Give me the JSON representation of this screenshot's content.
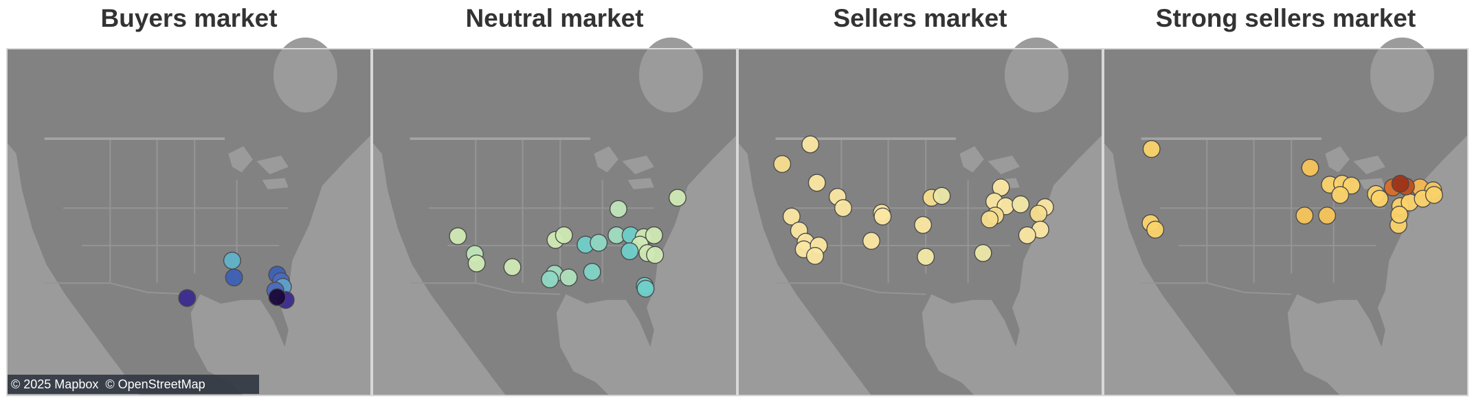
{
  "panels": [
    {
      "title": "Buyers market"
    },
    {
      "title": "Neutral market"
    },
    {
      "title": "Sellers market"
    },
    {
      "title": "Strong sellers market"
    }
  ],
  "attribution": "© 2025 Mapbox  © OpenStreetMap"
}
